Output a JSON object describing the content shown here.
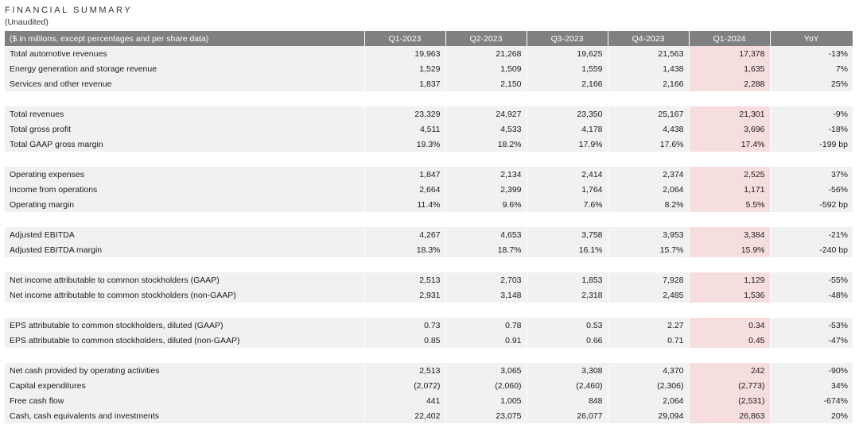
{
  "title": "FINANCIAL SUMMARY",
  "subtitle": "(Unaudited)",
  "highlight_color": "#f7dede",
  "header_color": "#808080",
  "columns": [
    "($ in millions, except percentages and per share data)",
    "Q1-2023",
    "Q2-2023",
    "Q3-2023",
    "Q4-2023",
    "Q1-2024",
    "YoY"
  ],
  "groups": [
    [
      {
        "label": "Total automotive revenues",
        "values": [
          "19,963",
          "21,268",
          "19,625",
          "21,563",
          "17,378"
        ],
        "yoy": "-13%"
      },
      {
        "label": "Energy generation and storage revenue",
        "values": [
          "1,529",
          "1,509",
          "1,559",
          "1,438",
          "1,635"
        ],
        "yoy": "7%"
      },
      {
        "label": "Services and other revenue",
        "values": [
          "1,837",
          "2,150",
          "2,166",
          "2,166",
          "2,288"
        ],
        "yoy": "25%"
      }
    ],
    [
      {
        "label": "Total revenues",
        "values": [
          "23,329",
          "24,927",
          "23,350",
          "25,167",
          "21,301"
        ],
        "yoy": "-9%"
      },
      {
        "label": "Total gross profit",
        "values": [
          "4,511",
          "4,533",
          "4,178",
          "4,438",
          "3,696"
        ],
        "yoy": "-18%"
      },
      {
        "label": "Total GAAP gross margin",
        "values": [
          "19.3%",
          "18.2%",
          "17.9%",
          "17.6%",
          "17.4%"
        ],
        "yoy": "-199 bp"
      }
    ],
    [
      {
        "label": "Operating expenses",
        "values": [
          "1,847",
          "2,134",
          "2,414",
          "2,374",
          "2,525"
        ],
        "yoy": "37%"
      },
      {
        "label": "Income from operations",
        "values": [
          "2,664",
          "2,399",
          "1,764",
          "2,064",
          "1,171"
        ],
        "yoy": "-56%"
      },
      {
        "label": "Operating margin",
        "values": [
          "11.4%",
          "9.6%",
          "7.6%",
          "8.2%",
          "5.5%"
        ],
        "yoy": "-592 bp"
      }
    ],
    [
      {
        "label": "Adjusted EBITDA",
        "values": [
          "4,267",
          "4,653",
          "3,758",
          "3,953",
          "3,384"
        ],
        "yoy": "-21%"
      },
      {
        "label": "Adjusted EBITDA margin",
        "values": [
          "18.3%",
          "18.7%",
          "16.1%",
          "15.7%",
          "15.9%"
        ],
        "yoy": "-240 bp"
      }
    ],
    [
      {
        "label": "Net income attributable to common stockholders (GAAP)",
        "values": [
          "2,513",
          "2,703",
          "1,853",
          "7,928",
          "1,129"
        ],
        "yoy": "-55%"
      },
      {
        "label": "Net income attributable to common stockholders (non-GAAP)",
        "values": [
          "2,931",
          "3,148",
          "2,318",
          "2,485",
          "1,536"
        ],
        "yoy": "-48%"
      }
    ],
    [
      {
        "label": "EPS attributable to common stockholders, diluted (GAAP)",
        "values": [
          "0.73",
          "0.78",
          "0.53",
          "2.27",
          "0.34"
        ],
        "yoy": "-53%"
      },
      {
        "label": "EPS attributable to common stockholders, diluted (non-GAAP)",
        "values": [
          "0.85",
          "0.91",
          "0.66",
          "0.71",
          "0.45"
        ],
        "yoy": "-47%"
      }
    ],
    [
      {
        "label": "Net cash provided by operating activities",
        "values": [
          "2,513",
          "3,065",
          "3,308",
          "4,370",
          "242"
        ],
        "yoy": "-90%"
      },
      {
        "label": "Capital expenditures",
        "values": [
          "(2,072)",
          "(2,060)",
          "(2,460)",
          "(2,306)",
          "(2,773)"
        ],
        "yoy": "34%"
      },
      {
        "label": "Free cash flow",
        "values": [
          "441",
          "1,005",
          "848",
          "2,064",
          "(2,531)"
        ],
        "yoy": "-674%"
      },
      {
        "label": "Cash, cash equivalents and investments",
        "values": [
          "22,402",
          "23,075",
          "26,077",
          "29,094",
          "26,863"
        ],
        "yoy": "20%"
      }
    ]
  ]
}
